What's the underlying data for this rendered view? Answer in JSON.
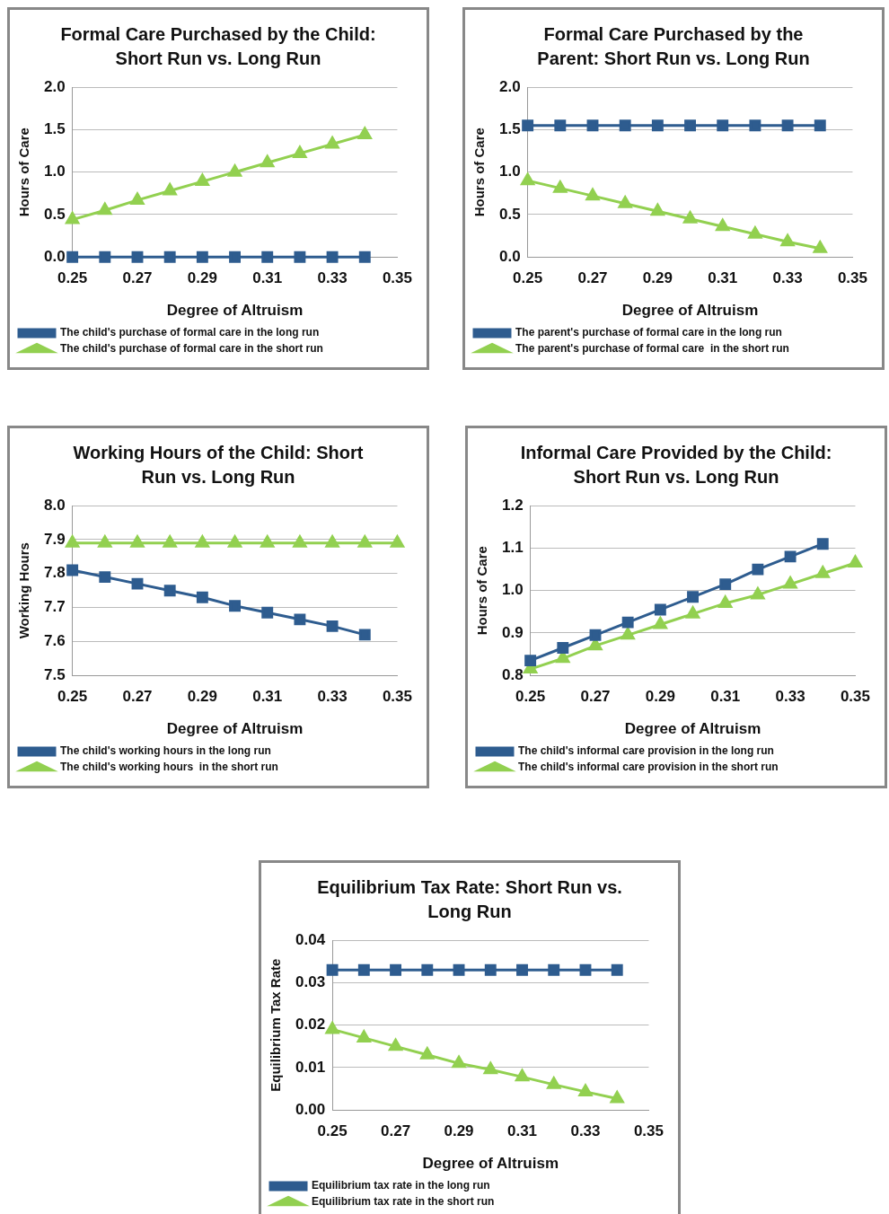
{
  "chart_data": [
    {
      "type": "line",
      "title": "Formal Care Purchased by the Child: Short Run vs. Long Run",
      "xlabel": "Degree of Altruism",
      "ylabel": "Hours of Care",
      "categories": [
        "0.25",
        null,
        "0.27",
        null,
        "0.29",
        null,
        "0.31",
        null,
        "0.33",
        null,
        "0.35"
      ],
      "series": [
        {
          "name": "The child's purchase of formal care in the long run",
          "color": "#2e5c8f",
          "marker": "square",
          "values": [
            0,
            0,
            0,
            0,
            0,
            0,
            0,
            0,
            0,
            0,
            null
          ]
        },
        {
          "name": "The child's purchase of formal care in the short run",
          "color": "#92d050",
          "marker": "triangle",
          "values": [
            0.44,
            0.55,
            0.67,
            0.78,
            0.89,
            1.0,
            1.11,
            1.22,
            1.33,
            1.44,
            null
          ]
        }
      ],
      "ylim": [
        0,
        2
      ],
      "yticks": [
        {
          "value": 0,
          "label": "0.0"
        },
        0.5,
        {
          "value": 1,
          "label": "1.0"
        },
        1.5,
        {
          "value": 2,
          "label": "2.0"
        }
      ],
      "grid": "y",
      "legend": "bottom"
    },
    {
      "type": "line",
      "title": "Formal Care Purchased by the Parent:  Short Run vs. Long Run",
      "xlabel": "Degree of Altruism",
      "ylabel": "Hours of Care",
      "categories": [
        "0.25",
        null,
        "0.27",
        null,
        "0.29",
        null,
        "0.31",
        null,
        "0.33",
        null,
        "0.35"
      ],
      "series": [
        {
          "name": "The parent's purchase of formal care in the long run",
          "color": "#2e5c8f",
          "marker": "square",
          "values": [
            1.55,
            1.55,
            1.55,
            1.55,
            1.55,
            1.55,
            1.55,
            1.55,
            1.55,
            1.55,
            null
          ]
        },
        {
          "name": "The parent's purchase of formal care  in the short run",
          "color": "#92d050",
          "marker": "triangle",
          "values": [
            0.9,
            0.81,
            0.72,
            0.63,
            0.54,
            0.45,
            0.36,
            0.27,
            0.18,
            0.1,
            null
          ]
        }
      ],
      "ylim": [
        0,
        2
      ],
      "yticks": [
        {
          "value": 0,
          "label": "0.0"
        },
        0.5,
        {
          "value": 1,
          "label": "1.0"
        },
        1.5,
        {
          "value": 2,
          "label": "2.0"
        }
      ],
      "grid": "y",
      "legend": "bottom"
    },
    {
      "type": "line",
      "title": "Working Hours of the Child: Short Run vs. Long Run",
      "xlabel": "Degree of Altruism",
      "ylabel": "Working Hours",
      "categories": [
        "0.25",
        null,
        "0.27",
        null,
        "0.29",
        null,
        "0.31",
        null,
        "0.33",
        null,
        "0.35"
      ],
      "series": [
        {
          "name": "The child's working hours in the long run",
          "color": "#2e5c8f",
          "marker": "square",
          "values": [
            7.81,
            7.79,
            7.77,
            7.75,
            7.73,
            7.705,
            7.685,
            7.665,
            7.645,
            7.62,
            null
          ]
        },
        {
          "name": "The child's working hours  in the short run",
          "color": "#92d050",
          "marker": "triangle",
          "values": [
            7.89,
            7.89,
            7.89,
            7.89,
            7.89,
            7.89,
            7.89,
            7.89,
            7.89,
            7.89,
            7.89
          ]
        }
      ],
      "ylim": [
        7.5,
        8
      ],
      "yticks": [
        7.5,
        7.6,
        7.7,
        7.8,
        7.9,
        {
          "value": 8,
          "label": "8.0"
        }
      ],
      "grid": "y",
      "legend": "bottom"
    },
    {
      "type": "line",
      "title": "Informal Care Provided by the Child: Short Run vs. Long Run",
      "xlabel": "Degree of Altruism",
      "ylabel": "Hours of Care",
      "categories": [
        "0.25",
        null,
        "0.27",
        null,
        "0.29",
        null,
        "0.31",
        null,
        "0.33",
        null,
        "0.35"
      ],
      "series": [
        {
          "name": "The child's informal care provision in the long run",
          "color": "#2e5c8f",
          "marker": "square",
          "values": [
            0.835,
            0.865,
            0.895,
            0.925,
            0.955,
            0.985,
            1.015,
            1.05,
            1.08,
            1.11,
            null
          ]
        },
        {
          "name": "The child's informal care provision in the short run",
          "color": "#92d050",
          "marker": "triangle",
          "values": [
            0.815,
            0.84,
            0.87,
            0.895,
            0.92,
            0.945,
            0.97,
            0.99,
            1.015,
            1.04,
            1.065
          ]
        }
      ],
      "ylim": [
        0.8,
        1.2
      ],
      "yticks": [
        0.8,
        0.9,
        {
          "value": 1,
          "label": "1.0"
        },
        1.1,
        1.2
      ],
      "grid": "y",
      "legend": "bottom"
    },
    {
      "type": "line",
      "title": "Equilibrium Tax Rate: Short Run vs. Long Run",
      "xlabel": "Degree of Altruism",
      "ylabel": "Equilibrium Tax Rate",
      "categories": [
        "0.25",
        null,
        "0.27",
        null,
        "0.29",
        null,
        "0.31",
        null,
        "0.33",
        null,
        "0.35"
      ],
      "series": [
        {
          "name": "Equilibrium tax rate in the long run",
          "color": "#2e5c8f",
          "marker": "square",
          "values": [
            0.033,
            0.033,
            0.033,
            0.033,
            0.033,
            0.033,
            0.033,
            0.033,
            0.033,
            0.033,
            null
          ]
        },
        {
          "name": "Equilibrium tax rate in the short run",
          "color": "#92d050",
          "marker": "triangle",
          "values": [
            0.019,
            0.017,
            0.015,
            0.013,
            0.011,
            0.0095,
            0.0078,
            0.006,
            0.0043,
            0.0027,
            null
          ]
        }
      ],
      "ylim": [
        0,
        0.04
      ],
      "yticks": [
        {
          "value": 0,
          "label": "0.00"
        },
        {
          "value": 0.01,
          "label": "0.01"
        },
        {
          "value": 0.02,
          "label": "0.02"
        },
        {
          "value": 0.03,
          "label": "0.03"
        },
        {
          "value": 0.04,
          "label": "0.04"
        }
      ],
      "grid": "y",
      "legend": "bottom"
    }
  ]
}
